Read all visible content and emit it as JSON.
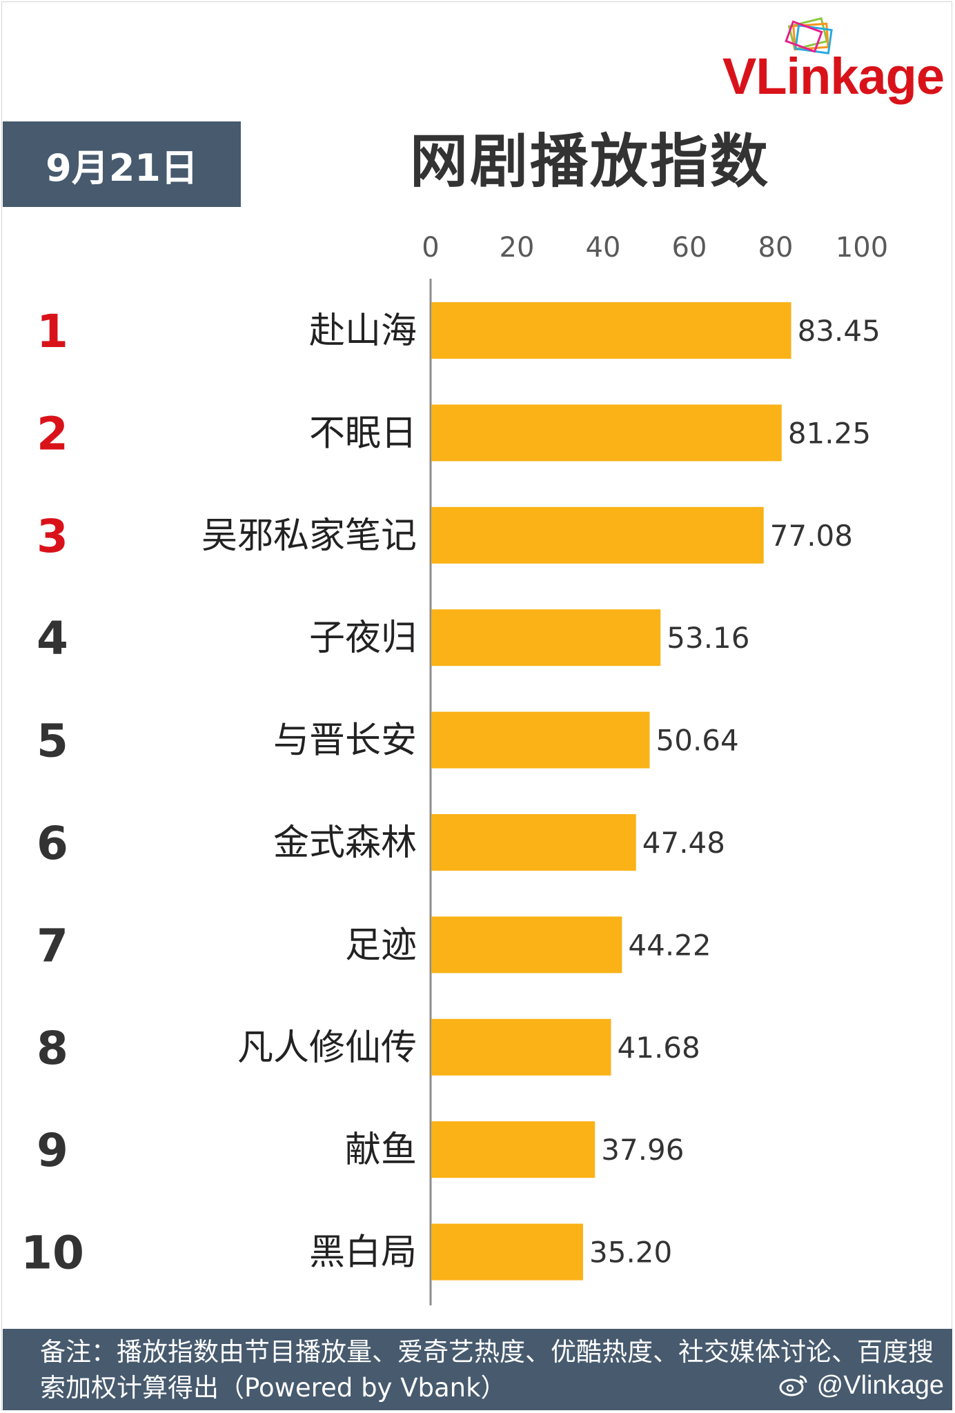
{
  "header": {
    "brand": "VLinkage",
    "date": "9月21日",
    "title": "网剧播放指数"
  },
  "colors": {
    "bar": "#fbb217",
    "header_bg": "#475a6e",
    "rank_top": "#d9121a",
    "rank_rest": "#333333",
    "brand": "#d9121a"
  },
  "chart_data": {
    "type": "bar",
    "orientation": "horizontal",
    "title": "网剧播放指数",
    "xlim": [
      0,
      100
    ],
    "x_ticks": [
      "0",
      "20",
      "40",
      "60",
      "80",
      "100"
    ],
    "ranks": [
      "1",
      "2",
      "3",
      "4",
      "5",
      "6",
      "7",
      "8",
      "9",
      "10"
    ],
    "categories": [
      "赴山海",
      "不眠日",
      "吴邪私家笔记",
      "子夜归",
      "与晋长安",
      "金式森林",
      "足迹",
      "凡人修仙传",
      "献鱼",
      "黑白局"
    ],
    "values": [
      83.45,
      81.25,
      77.08,
      53.16,
      50.64,
      47.48,
      44.22,
      41.68,
      37.96,
      35.2
    ],
    "value_labels": [
      "83.45",
      "81.25",
      "77.08",
      "53.16",
      "50.64",
      "47.48",
      "44.22",
      "41.68",
      "37.96",
      "35.20"
    ],
    "grid": false,
    "legend": "none"
  },
  "footer": {
    "note": "备注：播放指数由节目播放量、爱奇艺热度、优酷热度、社交媒体讨论、百度搜索加权计算得出（Powered by Vbank）",
    "watermark": "@Vlinkage"
  }
}
